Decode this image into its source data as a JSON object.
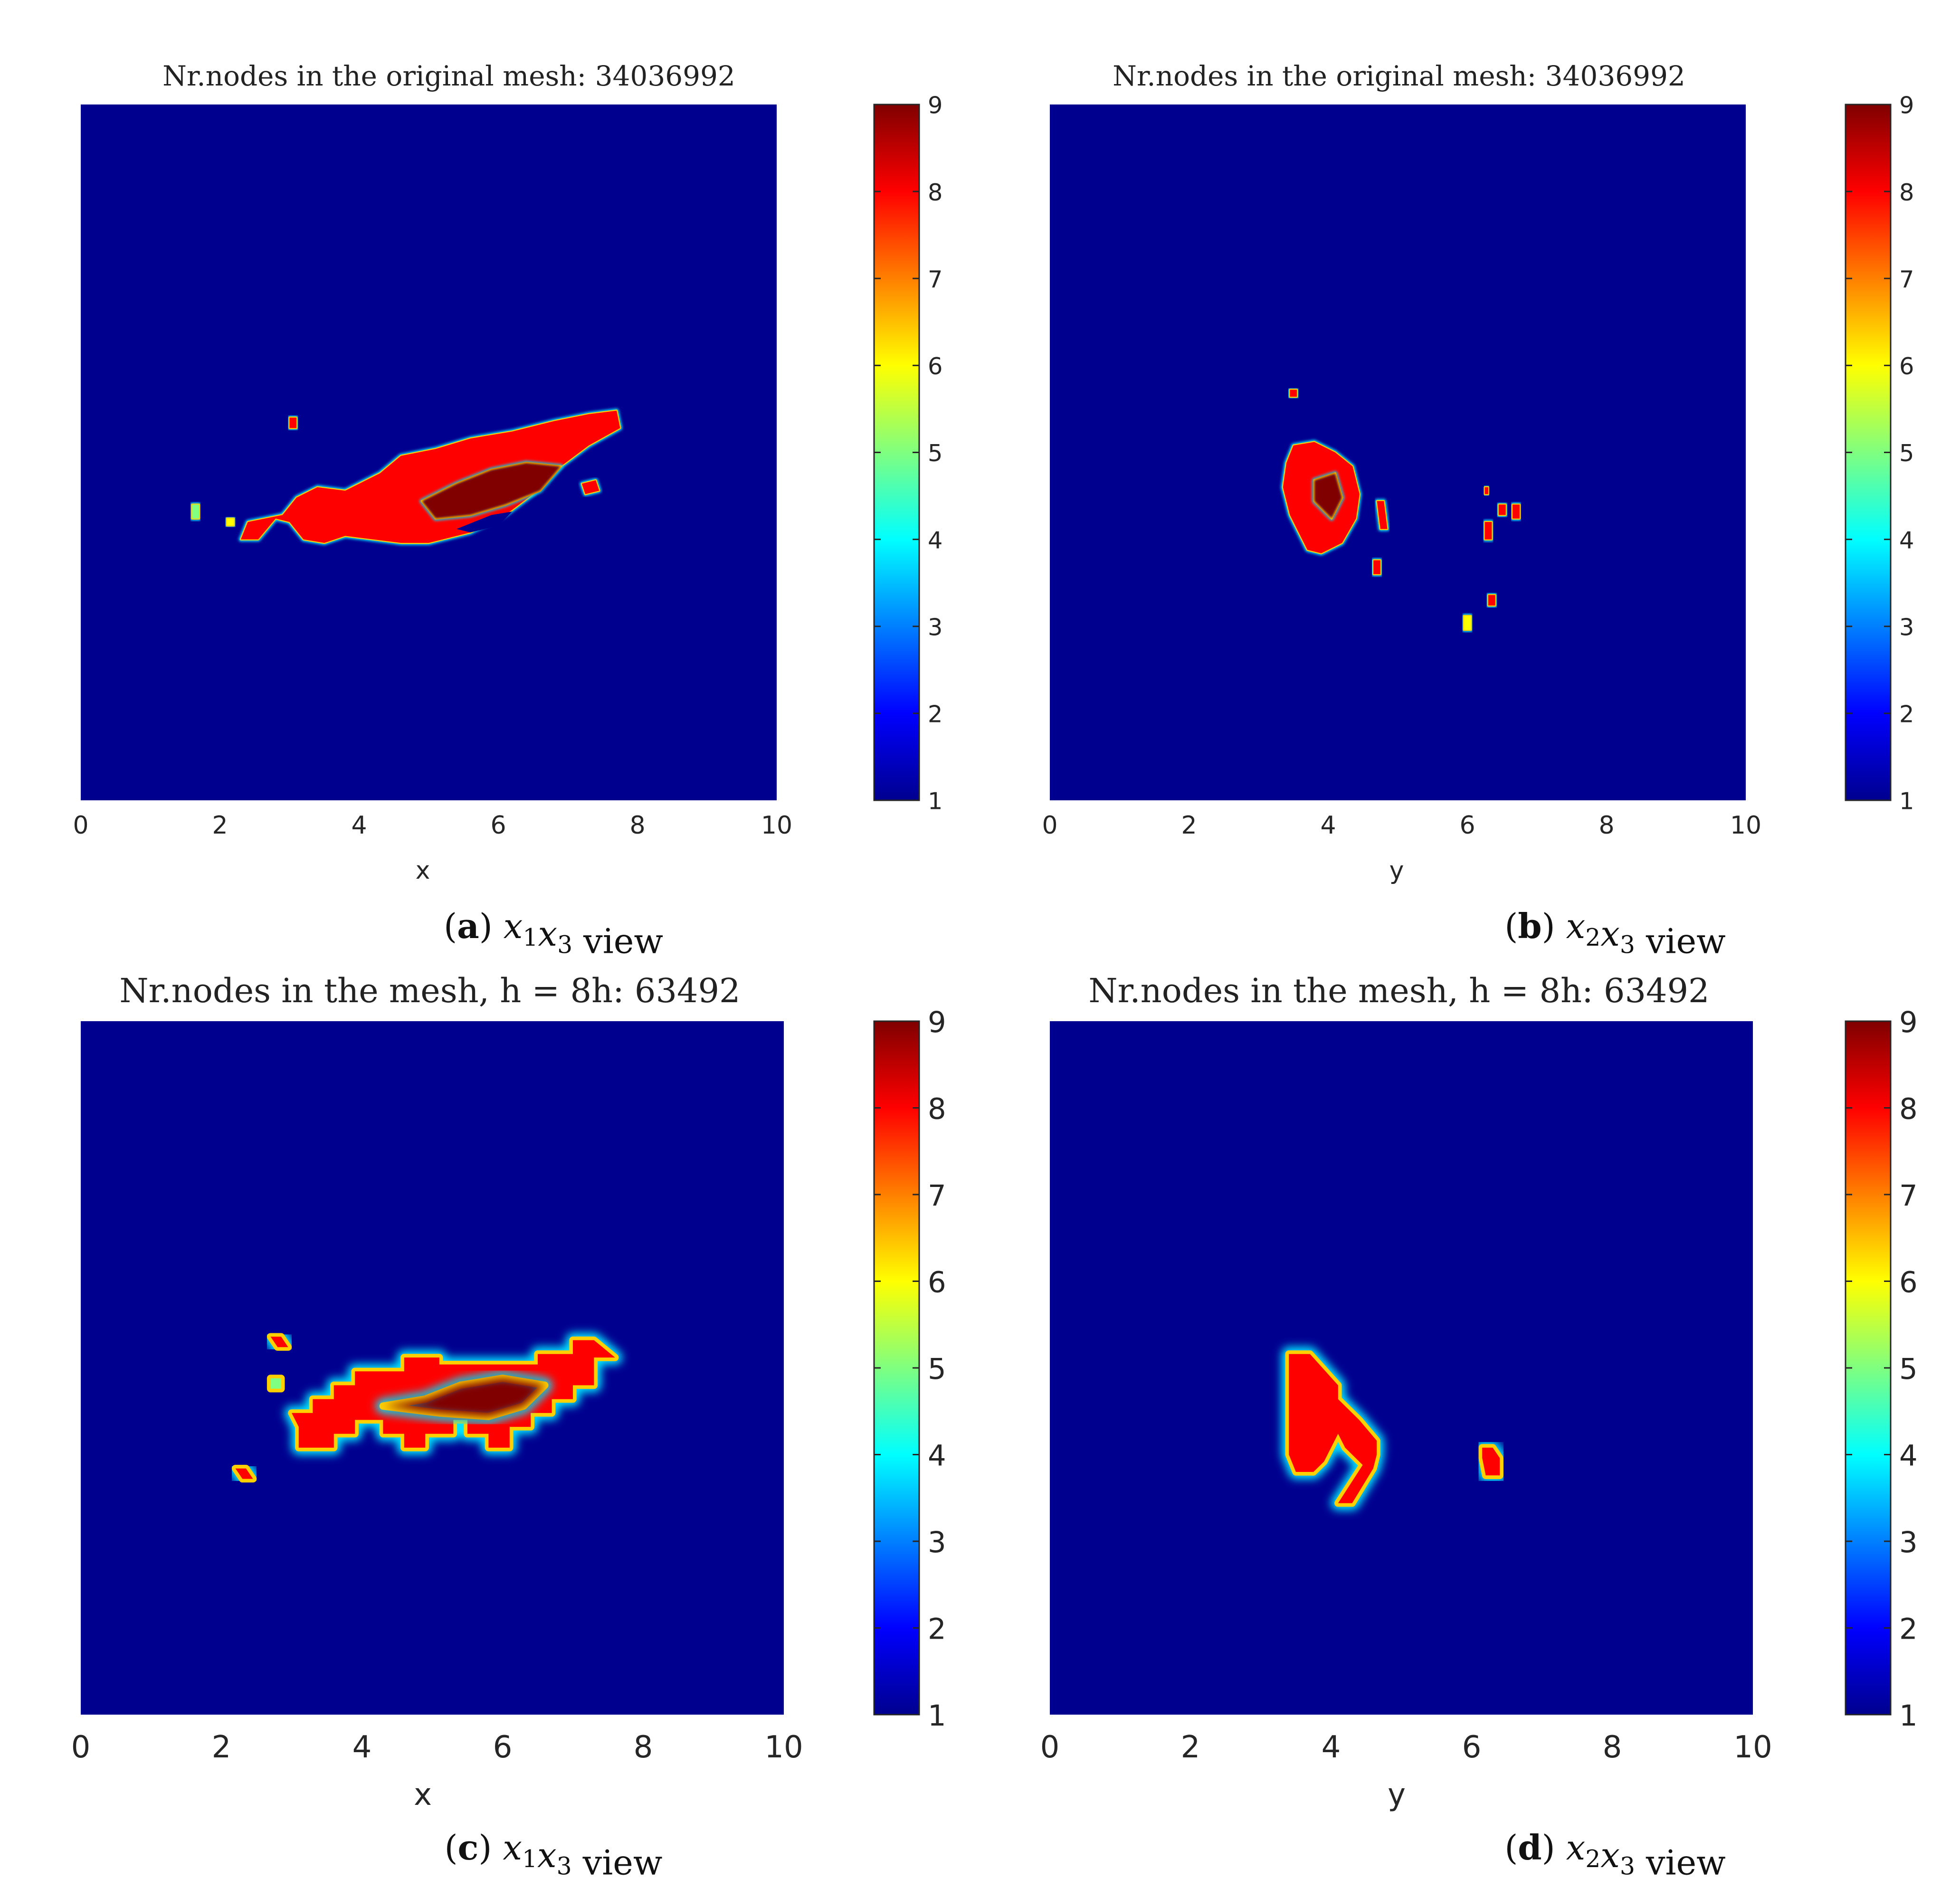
{
  "chart_data": [
    {
      "type": "heatmap",
      "panel_label": "(a)",
      "caption_axes": [
        "x1",
        "x3"
      ],
      "caption_suffix": "view",
      "title": "Nr.nodes in the original mesh:  34036992",
      "xlabel": "x",
      "xlim": [
        0,
        10
      ],
      "xticks": [
        0,
        2,
        4,
        6,
        8,
        10
      ],
      "xtick_labels": [
        "0",
        "2",
        "4",
        "6",
        "8",
        "10"
      ],
      "colorbar": {
        "range": [
          1,
          9
        ],
        "ticks": [
          1,
          2,
          3,
          4,
          5,
          6,
          7,
          8,
          9
        ]
      },
      "colormap": "jet",
      "background_value": 1,
      "regions": [
        {
          "value": 8,
          "poly": [
            [
              3.1,
              4.35
            ],
            [
              3.4,
              4.5
            ],
            [
              3.8,
              4.45
            ],
            [
              4.3,
              4.7
            ],
            [
              4.6,
              4.95
            ],
            [
              5.1,
              5.05
            ],
            [
              5.6,
              5.2
            ],
            [
              6.2,
              5.3
            ],
            [
              6.8,
              5.45
            ],
            [
              7.3,
              5.55
            ],
            [
              7.7,
              5.6
            ],
            [
              7.75,
              5.35
            ],
            [
              7.3,
              5.1
            ],
            [
              6.9,
              4.8
            ],
            [
              6.5,
              4.4
            ],
            [
              6.1,
              4.1
            ],
            [
              5.6,
              3.85
            ],
            [
              5.0,
              3.7
            ],
            [
              4.6,
              3.7
            ],
            [
              4.2,
              3.75
            ],
            [
              3.8,
              3.8
            ],
            [
              3.5,
              3.7
            ],
            [
              3.2,
              3.75
            ],
            [
              3.0,
              4.0
            ],
            [
              2.8,
              4.05
            ],
            [
              2.55,
              3.75
            ],
            [
              2.3,
              3.75
            ],
            [
              2.4,
              4.0
            ],
            [
              2.9,
              4.1
            ]
          ]
        },
        {
          "value": 9,
          "poly": [
            [
              4.9,
              4.3
            ],
            [
              5.4,
              4.55
            ],
            [
              5.9,
              4.75
            ],
            [
              6.4,
              4.85
            ],
            [
              6.9,
              4.8
            ],
            [
              6.6,
              4.45
            ],
            [
              6.1,
              4.25
            ],
            [
              5.6,
              4.1
            ],
            [
              5.1,
              4.05
            ]
          ]
        },
        {
          "value": 1,
          "poly": [
            [
              5.4,
              3.9
            ],
            [
              5.9,
              4.1
            ],
            [
              6.2,
              4.15
            ],
            [
              6.0,
              3.95
            ],
            [
              5.6,
              3.85
            ]
          ]
        },
        {
          "value": 8,
          "poly": [
            [
              7.2,
              4.55
            ],
            [
              7.4,
              4.6
            ],
            [
              7.45,
              4.45
            ],
            [
              7.25,
              4.4
            ]
          ]
        },
        {
          "value": 8,
          "poly": [
            [
              3.0,
              5.5
            ],
            [
              3.1,
              5.5
            ],
            [
              3.1,
              5.35
            ],
            [
              3.0,
              5.35
            ]
          ]
        },
        {
          "value": 5,
          "poly": [
            [
              1.6,
              4.25
            ],
            [
              1.7,
              4.25
            ],
            [
              1.7,
              4.05
            ],
            [
              1.6,
              4.05
            ]
          ]
        },
        {
          "value": 6,
          "poly": [
            [
              2.1,
              4.05
            ],
            [
              2.2,
              4.05
            ],
            [
              2.2,
              3.95
            ],
            [
              2.1,
              3.95
            ]
          ]
        }
      ]
    },
    {
      "type": "heatmap",
      "panel_label": "(b)",
      "caption_axes": [
        "x2",
        "x3"
      ],
      "caption_suffix": "view",
      "title": "Nr.nodes in the original mesh:  34036992",
      "xlabel": "y",
      "xlim": [
        0,
        10
      ],
      "xticks": [
        0,
        2,
        4,
        6,
        8,
        10
      ],
      "xtick_labels": [
        "0",
        "2",
        "4",
        "6",
        "8",
        "10"
      ],
      "colorbar": {
        "range": [
          1,
          9
        ],
        "ticks": [
          1,
          2,
          3,
          4,
          5,
          6,
          7,
          8,
          9
        ]
      },
      "colormap": "jet",
      "background_value": 1,
      "regions": [
        {
          "value": 8,
          "poly": [
            [
              3.4,
              4.85
            ],
            [
              3.5,
              5.1
            ],
            [
              3.8,
              5.15
            ],
            [
              4.1,
              5.0
            ],
            [
              4.35,
              4.8
            ],
            [
              4.45,
              4.4
            ],
            [
              4.4,
              4.05
            ],
            [
              4.2,
              3.7
            ],
            [
              3.9,
              3.55
            ],
            [
              3.7,
              3.6
            ],
            [
              3.45,
              4.1
            ],
            [
              3.35,
              4.5
            ]
          ]
        },
        {
          "value": 9,
          "poly": [
            [
              3.8,
              4.6
            ],
            [
              4.1,
              4.7
            ],
            [
              4.2,
              4.35
            ],
            [
              4.05,
              4.05
            ],
            [
              3.8,
              4.3
            ]
          ]
        },
        {
          "value": 8,
          "poly": [
            [
              4.7,
              4.3
            ],
            [
              4.8,
              4.3
            ],
            [
              4.85,
              3.9
            ],
            [
              4.75,
              3.9
            ]
          ]
        },
        {
          "value": 8,
          "poly": [
            [
              4.65,
              3.45
            ],
            [
              4.75,
              3.45
            ],
            [
              4.75,
              3.25
            ],
            [
              4.65,
              3.25
            ]
          ]
        },
        {
          "value": 8,
          "poly": [
            [
              6.25,
              4.0
            ],
            [
              6.35,
              4.0
            ],
            [
              6.35,
              3.75
            ],
            [
              6.25,
              3.75
            ]
          ]
        },
        {
          "value": 8,
          "poly": [
            [
              6.45,
              4.25
            ],
            [
              6.55,
              4.25
            ],
            [
              6.55,
              4.1
            ],
            [
              6.45,
              4.1
            ]
          ]
        },
        {
          "value": 8,
          "poly": [
            [
              6.65,
              4.25
            ],
            [
              6.75,
              4.25
            ],
            [
              6.75,
              4.05
            ],
            [
              6.65,
              4.05
            ]
          ]
        },
        {
          "value": 8,
          "poly": [
            [
              6.3,
              2.95
            ],
            [
              6.4,
              2.95
            ],
            [
              6.4,
              2.8
            ],
            [
              6.3,
              2.8
            ]
          ]
        },
        {
          "value": 6,
          "poly": [
            [
              5.95,
              2.65
            ],
            [
              6.05,
              2.65
            ],
            [
              6.05,
              2.45
            ],
            [
              5.95,
              2.45
            ]
          ]
        },
        {
          "value": 8,
          "poly": [
            [
              3.45,
              5.9
            ],
            [
              3.55,
              5.9
            ],
            [
              3.55,
              5.8
            ],
            [
              3.45,
              5.8
            ]
          ]
        },
        {
          "value": 8,
          "poly": [
            [
              6.25,
              4.5
            ],
            [
              6.3,
              4.5
            ],
            [
              6.3,
              4.4
            ],
            [
              6.25,
              4.4
            ]
          ]
        }
      ]
    },
    {
      "type": "heatmap",
      "panel_label": "(c)",
      "caption_axes": [
        "x1",
        "x3"
      ],
      "caption_suffix": "view",
      "title": "Nr.nodes in the mesh, h = 8h:  63492",
      "xlabel": "x",
      "xlim": [
        0,
        10
      ],
      "xticks": [
        0,
        2,
        4,
        6,
        8,
        10
      ],
      "xtick_labels": [
        "0",
        "2",
        "4",
        "6",
        "8",
        "10"
      ],
      "colorbar": {
        "range": [
          1,
          9
        ],
        "ticks": [
          1,
          2,
          3,
          4,
          5,
          6,
          7,
          8,
          9
        ]
      },
      "colormap": "jet",
      "background_value": 1,
      "regions": [
        {
          "value": 8,
          "poly": [
            [
              3.0,
              4.35
            ],
            [
              3.3,
              4.35
            ],
            [
              3.3,
              4.55
            ],
            [
              3.6,
              4.55
            ],
            [
              3.6,
              4.75
            ],
            [
              3.9,
              4.75
            ],
            [
              3.9,
              4.95
            ],
            [
              4.6,
              4.95
            ],
            [
              4.6,
              5.15
            ],
            [
              5.1,
              5.15
            ],
            [
              5.1,
              5.05
            ],
            [
              6.5,
              5.05
            ],
            [
              6.5,
              5.2
            ],
            [
              7.0,
              5.2
            ],
            [
              7.0,
              5.4
            ],
            [
              7.3,
              5.4
            ],
            [
              7.6,
              5.15
            ],
            [
              7.3,
              5.15
            ],
            [
              7.3,
              4.75
            ],
            [
              7.0,
              4.75
            ],
            [
              7.0,
              4.55
            ],
            [
              6.7,
              4.55
            ],
            [
              6.7,
              4.35
            ],
            [
              6.4,
              4.35
            ],
            [
              6.4,
              4.15
            ],
            [
              6.1,
              4.15
            ],
            [
              6.1,
              3.85
            ],
            [
              5.8,
              3.85
            ],
            [
              5.8,
              4.05
            ],
            [
              5.5,
              4.05
            ],
            [
              5.5,
              4.25
            ],
            [
              5.3,
              4.25
            ],
            [
              5.3,
              4.05
            ],
            [
              4.9,
              4.05
            ],
            [
              4.9,
              3.85
            ],
            [
              4.6,
              3.85
            ],
            [
              4.6,
              4.05
            ],
            [
              4.3,
              4.05
            ],
            [
              4.3,
              4.25
            ],
            [
              3.9,
              4.25
            ],
            [
              3.9,
              4.05
            ],
            [
              3.6,
              4.05
            ],
            [
              3.6,
              3.85
            ],
            [
              3.1,
              3.85
            ],
            [
              3.1,
              4.15
            ]
          ]
        },
        {
          "value": 9,
          "poly": [
            [
              4.3,
              4.45
            ],
            [
              4.9,
              4.55
            ],
            [
              5.4,
              4.75
            ],
            [
              6.0,
              4.85
            ],
            [
              6.6,
              4.75
            ],
            [
              6.3,
              4.45
            ],
            [
              5.8,
              4.3
            ],
            [
              5.1,
              4.35
            ]
          ]
        },
        {
          "value": 8,
          "poly": [
            [
              2.7,
              5.45
            ],
            [
              2.85,
              5.45
            ],
            [
              2.95,
              5.3
            ],
            [
              2.8,
              5.3
            ]
          ]
        },
        {
          "value": 8,
          "poly": [
            [
              2.2,
              3.55
            ],
            [
              2.35,
              3.55
            ],
            [
              2.45,
              3.4
            ],
            [
              2.3,
              3.4
            ]
          ]
        },
        {
          "value": 5,
          "poly": [
            [
              2.7,
              4.85
            ],
            [
              2.85,
              4.85
            ],
            [
              2.85,
              4.7
            ],
            [
              2.7,
              4.7
            ]
          ]
        }
      ]
    },
    {
      "type": "heatmap",
      "panel_label": "(d)",
      "caption_axes": [
        "x2",
        "x3"
      ],
      "caption_suffix": "view",
      "title": "Nr.nodes in the mesh, h = 8h:  63492",
      "xlabel": "y",
      "xlim": [
        0,
        10
      ],
      "xticks": [
        0,
        2,
        4,
        6,
        8,
        10
      ],
      "xtick_labels": [
        "0",
        "2",
        "4",
        "6",
        "8",
        "10"
      ],
      "colorbar": {
        "range": [
          1,
          9
        ],
        "ticks": [
          1,
          2,
          3,
          4,
          5,
          6,
          7,
          8,
          9
        ]
      },
      "colormap": "jet",
      "background_value": 1,
      "regions": [
        {
          "value": 8,
          "poly": [
            [
              3.4,
              5.2
            ],
            [
              3.7,
              5.2
            ],
            [
              4.1,
              4.75
            ],
            [
              4.1,
              4.55
            ],
            [
              4.4,
              4.25
            ],
            [
              4.65,
              3.95
            ],
            [
              4.65,
              3.75
            ],
            [
              4.6,
              3.55
            ],
            [
              4.3,
              3.05
            ],
            [
              4.1,
              3.05
            ],
            [
              4.45,
              3.6
            ],
            [
              4.2,
              3.85
            ],
            [
              4.1,
              4.05
            ],
            [
              3.9,
              3.65
            ],
            [
              3.75,
              3.5
            ],
            [
              3.5,
              3.5
            ],
            [
              3.4,
              3.75
            ]
          ]
        },
        {
          "value": 8,
          "poly": [
            [
              6.15,
              3.85
            ],
            [
              6.3,
              3.85
            ],
            [
              6.4,
              3.7
            ],
            [
              6.4,
              3.45
            ],
            [
              6.2,
              3.45
            ],
            [
              6.15,
              3.7
            ]
          ]
        }
      ]
    }
  ]
}
